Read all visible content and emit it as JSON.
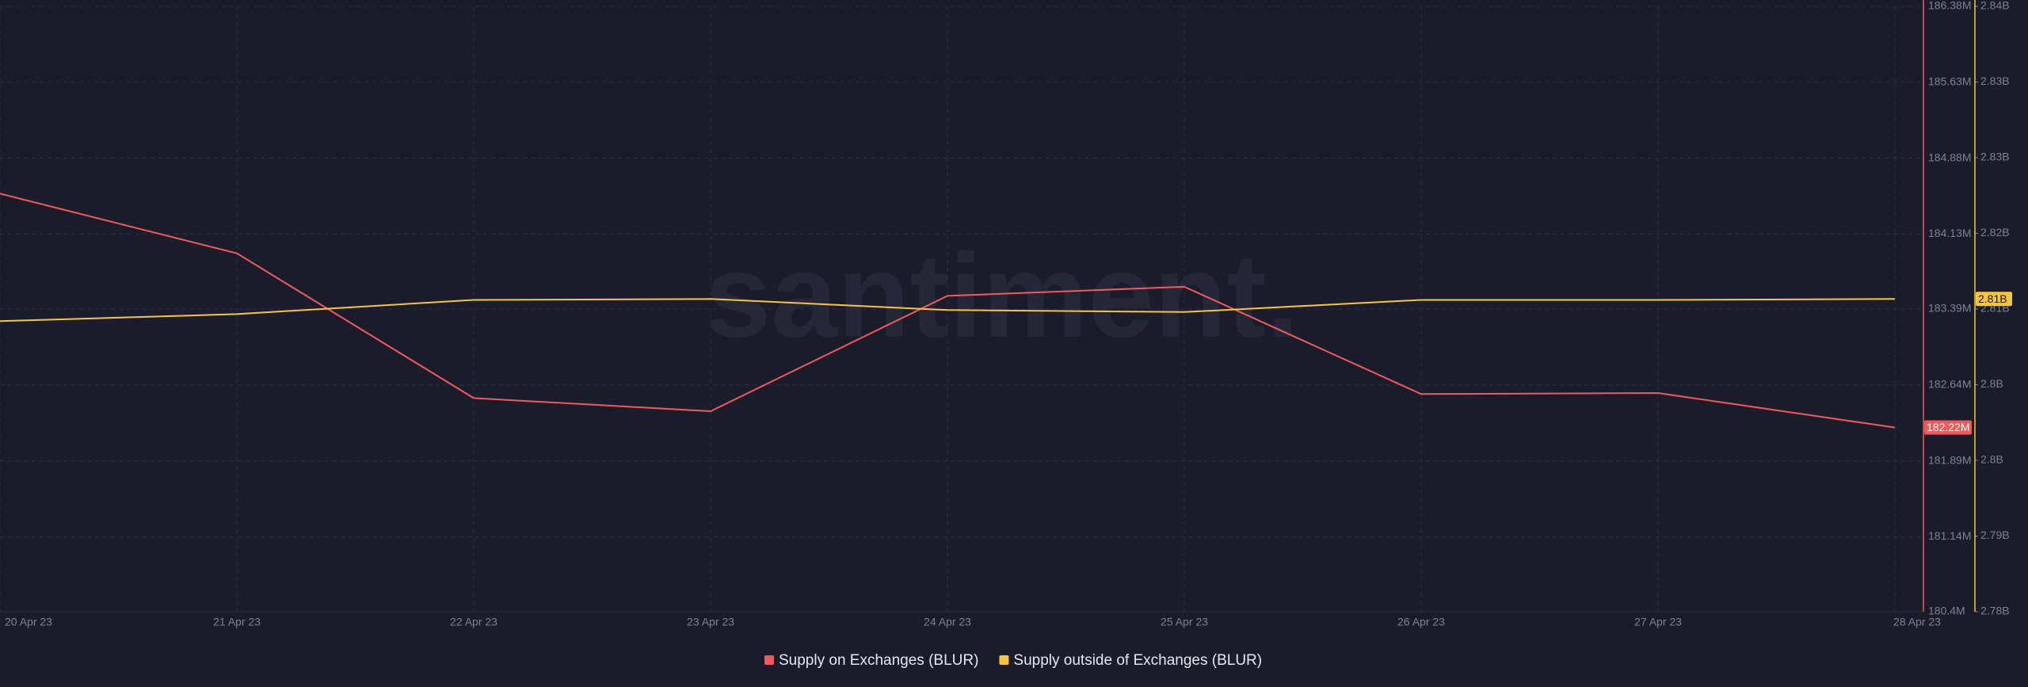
{
  "chart_data": {
    "type": "line",
    "watermark": "santiment.",
    "categories": [
      "20 Apr 23",
      "21 Apr 23",
      "22 Apr 23",
      "23 Apr 23",
      "24 Apr 23",
      "25 Apr 23",
      "26 Apr 23",
      "27 Apr 23",
      "28 Apr 23"
    ],
    "series": [
      {
        "name": "Supply on Exchanges (BLUR)",
        "color": "#f05a5a",
        "axis": "y",
        "values": [
          184.53,
          183.94,
          182.51,
          182.38,
          183.52,
          183.61,
          182.55,
          182.56,
          182.22
        ],
        "value_labels": [
          null,
          null,
          null,
          null,
          null,
          null,
          null,
          null,
          "182.22M"
        ]
      },
      {
        "name": "Supply outside of Exchanges (BLUR)",
        "color": "#f5c542",
        "axis": "y2",
        "values": [
          2.8088,
          2.8095,
          2.8109,
          2.811,
          2.8099,
          2.8097,
          2.8109,
          2.8109,
          2.811
        ],
        "value_labels": [
          null,
          null,
          null,
          null,
          null,
          null,
          null,
          null,
          "2.81B"
        ]
      }
    ],
    "ylim": [
      180.4,
      186.38
    ],
    "yticks": [
      {
        "value": 180.4,
        "label": "180.4M"
      },
      {
        "value": 181.14,
        "label": "181.14M"
      },
      {
        "value": 181.89,
        "label": "181.89M"
      },
      {
        "value": 182.64,
        "label": "182.64M"
      },
      {
        "value": 183.39,
        "label": "183.39M"
      },
      {
        "value": 184.13,
        "label": "184.13M"
      },
      {
        "value": 184.88,
        "label": "184.88M"
      },
      {
        "value": 185.63,
        "label": "185.63M"
      },
      {
        "value": 186.38,
        "label": "186.38M"
      }
    ],
    "y2lim": [
      2.78,
      2.84
    ],
    "y2ticks": [
      {
        "value": 2.78,
        "label": "2.78B"
      },
      {
        "value": 2.7875,
        "label": "2.79B"
      },
      {
        "value": 2.795,
        "label": "2.8B"
      },
      {
        "value": 2.8025,
        "label": "2.8B"
      },
      {
        "value": 2.81,
        "label": "2.81B"
      },
      {
        "value": 2.8175,
        "label": "2.82B"
      },
      {
        "value": 2.825,
        "label": "2.83B"
      },
      {
        "value": 2.8325,
        "label": "2.83B"
      },
      {
        "value": 2.84,
        "label": "2.84B"
      }
    ],
    "grid": true
  }
}
